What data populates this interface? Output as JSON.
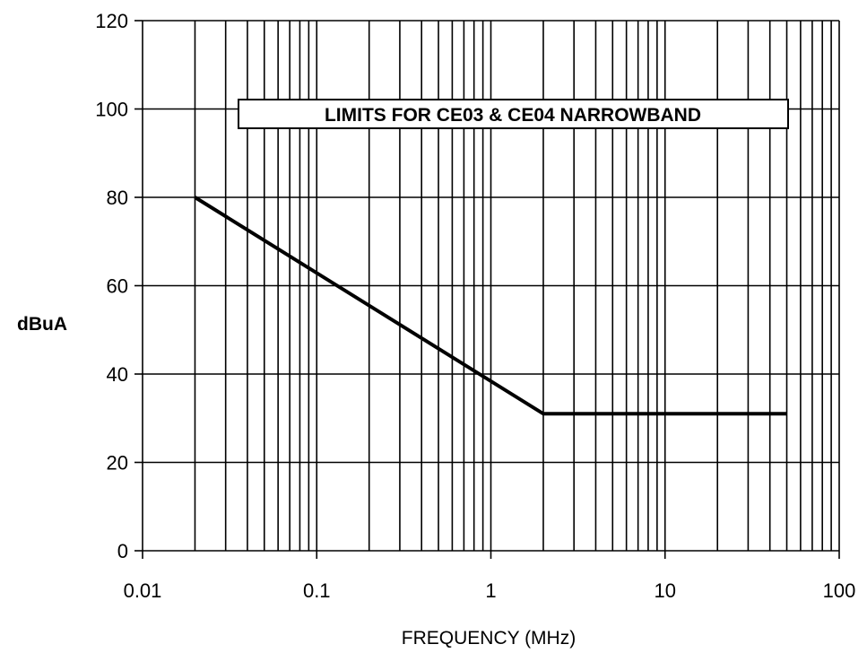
{
  "chart_data": {
    "type": "line",
    "title": "LIMITS FOR CE03 & CE04 NARROWBAND",
    "xlabel": "FREQUENCY (MHz)",
    "ylabel": "dBuA",
    "x_scale": "log",
    "xlim": [
      0.01,
      100
    ],
    "ylim": [
      0,
      120
    ],
    "x_ticks": [
      0.01,
      0.1,
      1,
      10,
      100
    ],
    "x_tick_labels": [
      "0.01",
      "0.1",
      "1",
      "10",
      "100"
    ],
    "y_ticks": [
      0,
      20,
      40,
      60,
      80,
      100,
      120
    ],
    "y_tick_labels": [
      "0",
      "20",
      "40",
      "60",
      "80",
      "100",
      "120"
    ],
    "grid": true,
    "series": [
      {
        "x": [
          0.02,
          2,
          50
        ],
        "y": [
          80,
          31,
          31
        ]
      }
    ]
  }
}
